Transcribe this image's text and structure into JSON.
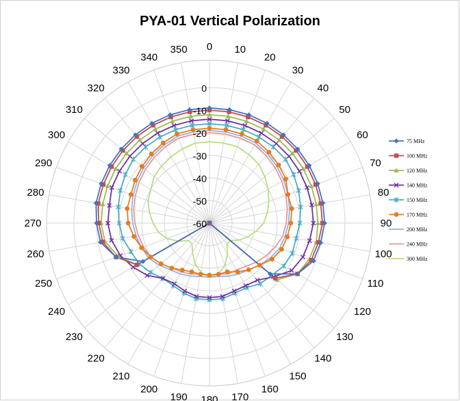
{
  "chart_data": {
    "type": "radar",
    "title": "PYA-01 Vertical Polarization",
    "radial_axis": {
      "min": -60,
      "max": 0,
      "step": 10,
      "tick_labels": [
        "-60",
        "-50",
        "-40",
        "-30",
        "-20",
        "-10",
        "0"
      ]
    },
    "angle_step": 10,
    "categories": [
      "0",
      "10",
      "20",
      "30",
      "40",
      "50",
      "60",
      "70",
      "80",
      "90",
      "100",
      "110",
      "120",
      "130",
      "140",
      "150",
      "160",
      "170",
      "180",
      "190",
      "200",
      "210",
      "220",
      "230",
      "240",
      "250",
      "260",
      "270",
      "280",
      "290",
      "300",
      "310",
      "320",
      "330",
      "340",
      "350"
    ],
    "grid": true,
    "legend_position": "right",
    "series": [
      {
        "name": "75 MHz",
        "color": "#4472c4",
        "marker": "diamond",
        "values": [
          -9,
          -9,
          -9,
          -9,
          -9,
          -9,
          -9,
          -9,
          -9,
          -9,
          -10,
          -11,
          -15,
          -25,
          -60,
          -60,
          -60,
          -60,
          -60,
          -60,
          -60,
          -60,
          -60,
          -60,
          -26,
          -16,
          -11,
          -10,
          -9,
          -9,
          -9,
          -9,
          -9,
          -9,
          -9,
          -9
        ]
      },
      {
        "name": "100 MHz",
        "color": "#c0504d",
        "marker": "square",
        "values": [
          -10,
          -10,
          -10,
          -10,
          -10,
          -10,
          -10,
          -10,
          -10,
          -10,
          -11,
          -12,
          -15,
          -22,
          -60,
          -60,
          -60,
          -60,
          -60,
          -60,
          -60,
          -60,
          -60,
          -60,
          -23,
          -16,
          -12,
          -11,
          -10,
          -10,
          -10,
          -10,
          -10,
          -10,
          -10,
          -10
        ]
      },
      {
        "name": "120 MHz",
        "color": "#9bbb59",
        "marker": "triangle",
        "values": [
          -12,
          -12,
          -12,
          -12,
          -12,
          -12,
          -12,
          -12,
          -12,
          -12,
          -12,
          -13,
          -15,
          -21,
          -60,
          -60,
          -60,
          -60,
          -60,
          -60,
          -60,
          -60,
          -60,
          -60,
          -23,
          -17,
          -13,
          -12,
          -12,
          -12,
          -12,
          -12,
          -12,
          -12,
          -12,
          -12
        ]
      },
      {
        "name": "140 MHz",
        "color": "#7030a0",
        "marker": "x",
        "values": [
          -14,
          -14,
          -14,
          -14,
          -14,
          -14,
          -14,
          -14,
          -14,
          -14,
          -15,
          -16,
          -18,
          -23,
          -27,
          -28,
          -28,
          -27,
          -27,
          -27,
          -28,
          -29,
          -28,
          -24,
          -21,
          -18,
          -16,
          -15,
          -15,
          -14,
          -14,
          -14,
          -14,
          -14,
          -14,
          -14
        ]
      },
      {
        "name": "150 MHz",
        "color": "#4bacc6",
        "marker": "star",
        "values": [
          -16,
          -16,
          -16,
          -16,
          -16,
          -16,
          -17,
          -18,
          -19,
          -20,
          -21,
          -21,
          -22,
          -24,
          -25,
          -27,
          -27,
          -26,
          -26,
          -26,
          -27,
          -28,
          -28,
          -26,
          -24,
          -23,
          -21,
          -20,
          -19,
          -18,
          -17,
          -16,
          -16,
          -16,
          -16,
          -16
        ]
      },
      {
        "name": "170 MHz",
        "color": "#e57c1f",
        "marker": "circle",
        "values": [
          -18,
          -18,
          -18,
          -18,
          -19,
          -20,
          -21,
          -23,
          -23,
          -24,
          -25,
          -26,
          -28,
          -31,
          -33,
          -35,
          -37,
          -37,
          -37,
          -37,
          -37,
          -36,
          -34,
          -32,
          -30,
          -28,
          -26,
          -24,
          -23,
          -23,
          -22,
          -21,
          -20,
          -19,
          -18,
          -18
        ]
      },
      {
        "name": "200 MHz",
        "color": "#8eb4e3",
        "marker": "none",
        "values": [
          -19,
          -19,
          -19,
          -19,
          -20,
          -21,
          -22,
          -23,
          -24,
          -25,
          -26,
          -27,
          -29,
          -31,
          -33,
          -34,
          -35,
          -36,
          -36,
          -36,
          -35,
          -34,
          -33,
          -31,
          -29,
          -28,
          -27,
          -26,
          -25,
          -24,
          -23,
          -22,
          -21,
          -20,
          -19,
          -19
        ]
      },
      {
        "name": "240 MHz",
        "color": "#e69797",
        "marker": "none",
        "values": [
          -20,
          -20,
          -20,
          -20,
          -21,
          -22,
          -23,
          -24,
          -25,
          -26,
          -27,
          -29,
          -31,
          -33,
          -35,
          -36,
          -36,
          -37,
          -37,
          -37,
          -36,
          -35,
          -34,
          -32,
          -30,
          -29,
          -28,
          -27,
          -26,
          -25,
          -24,
          -23,
          -22,
          -21,
          -20,
          -20
        ]
      },
      {
        "name": "300 MHz",
        "color": "#b7dd80",
        "marker": "none",
        "values": [
          -24,
          -24,
          -24,
          -25,
          -26,
          -28,
          -30,
          -32,
          -34,
          -36,
          -39,
          -42,
          -45,
          -48,
          -48,
          -44,
          -40,
          -37,
          -36,
          -38,
          -41,
          -45,
          -48,
          -48,
          -44,
          -40,
          -37,
          -35,
          -33,
          -31,
          -30,
          -28,
          -27,
          -26,
          -25,
          -24
        ]
      }
    ]
  }
}
